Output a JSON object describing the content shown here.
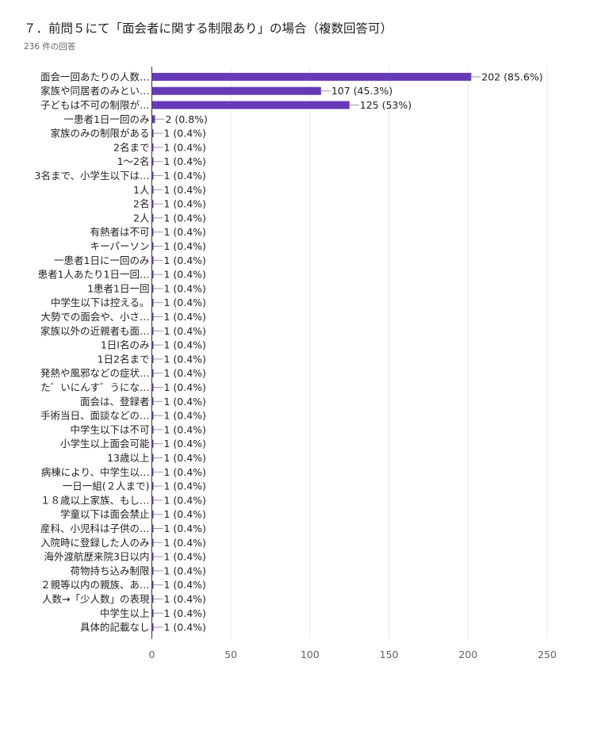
{
  "header": {
    "title": "７．前問５にて「面会者に関する制限あり」の場合（複数回答可）",
    "response_count": "236 件の回答"
  },
  "colors": {
    "bar": "#673ab7",
    "grid": "#e8e8e8",
    "axis": "#333333",
    "leader": "#999999"
  },
  "chart_data": {
    "type": "bar",
    "orientation": "horizontal",
    "title": "７．前問５にて「面会者に関する制限あり」の場合（複数回答可）",
    "xlim": [
      0,
      250
    ],
    "xticks": [
      0,
      50,
      100,
      150,
      200,
      250
    ],
    "grid": true,
    "categories": [
      "面会一回あたりの人数…",
      "家族や同居者のみとい…",
      "子どもは不可の制限が…",
      "一患者1日一回のみ",
      "家族のみの制限がある",
      "2名まで",
      "1〜2名",
      "3名まで、小学生以下は…",
      "1人",
      "2名",
      "2人",
      "有熱者は不可",
      "キーパーソン",
      "一患者1日に一回のみ",
      "患者1人あたり1日一回…",
      "1患者1日一回",
      "中学生以下は控える。",
      "大勢での面会や、小さ…",
      "家族以外の近親者も面…",
      "1日I名のみ",
      "1日2名まで",
      "発熱や風邪などの症状…",
      "た゛いにんす゛うにな…",
      "面会は、登録者",
      "手術当日、面談などの…",
      "中学生以下は不可",
      "小学生以上面会可能",
      "13歳以上",
      "病棟により、中学生以…",
      "一日一組(２人まで)",
      "１８歳以上家族、もし…",
      "学童以下は面会禁止",
      "産科、小児科は子供の…",
      "入院時に登録した人のみ",
      "海外渡航歴来院3日以内",
      "荷物持ち込み制限",
      "２親等以内の親族、あ…",
      "人数→「少人数」の表現",
      "中学生以上",
      "具体的記載なし"
    ],
    "values": [
      202,
      107,
      125,
      2,
      1,
      1,
      1,
      1,
      1,
      1,
      1,
      1,
      1,
      1,
      1,
      1,
      1,
      1,
      1,
      1,
      1,
      1,
      1,
      1,
      1,
      1,
      1,
      1,
      1,
      1,
      1,
      1,
      1,
      1,
      1,
      1,
      1,
      1,
      1,
      1
    ],
    "value_labels": [
      "202 (85.6%)",
      "107 (45.3%)",
      "125 (53%)",
      "2 (0.8%)",
      "1 (0.4%)",
      "1 (0.4%)",
      "1 (0.4%)",
      "1 (0.4%)",
      "1 (0.4%)",
      "1 (0.4%)",
      "1 (0.4%)",
      "1 (0.4%)",
      "1 (0.4%)",
      "1 (0.4%)",
      "1 (0.4%)",
      "1 (0.4%)",
      "1 (0.4%)",
      "1 (0.4%)",
      "1 (0.4%)",
      "1 (0.4%)",
      "1 (0.4%)",
      "1 (0.4%)",
      "1 (0.4%)",
      "1 (0.4%)",
      "1 (0.4%)",
      "1 (0.4%)",
      "1 (0.4%)",
      "1 (0.4%)",
      "1 (0.4%)",
      "1 (0.4%)",
      "1 (0.4%)",
      "1 (0.4%)",
      "1 (0.4%)",
      "1 (0.4%)",
      "1 (0.4%)",
      "1 (0.4%)",
      "1 (0.4%)",
      "1 (0.4%)",
      "1 (0.4%)",
      "1 (0.4%)"
    ]
  }
}
